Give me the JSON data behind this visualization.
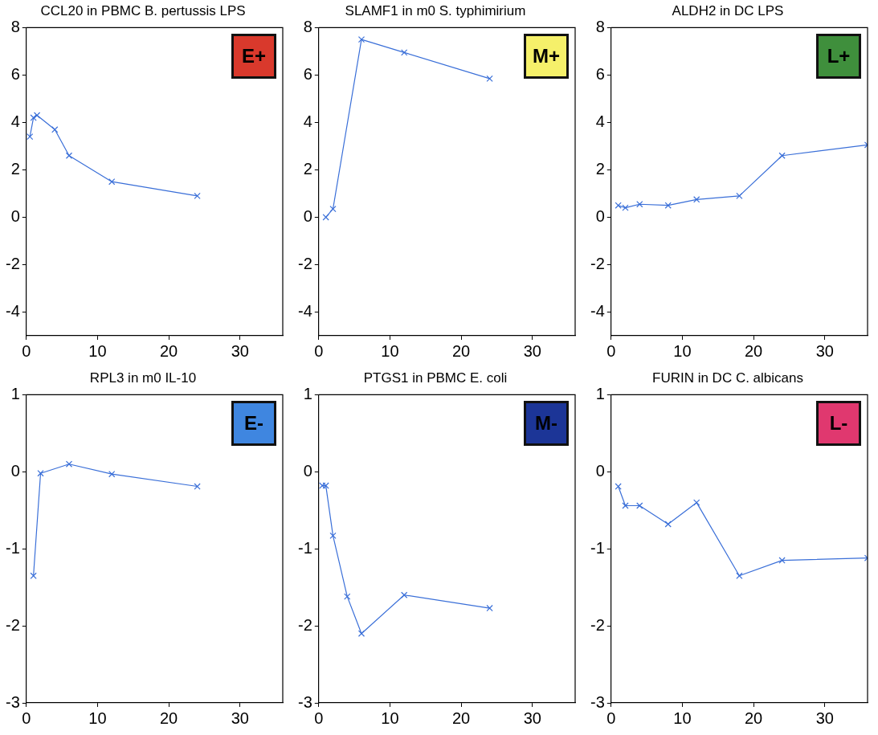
{
  "chart_data": [
    {
      "type": "line",
      "title": "CCL20 in PBMC B. pertussis LPS",
      "x": [
        0.5,
        1,
        1.5,
        4,
        6,
        12,
        24
      ],
      "series": [
        {
          "color": "#3a6fd8",
          "values": [
            3.4,
            4.2,
            4.3,
            3.7,
            2.6,
            1.5,
            0.9
          ]
        }
      ],
      "xlim": [
        0,
        36
      ],
      "xticks": [
        0,
        10,
        20,
        30
      ],
      "ylim": [
        -5,
        8
      ],
      "yticks": [
        -4,
        -2,
        0,
        2,
        4,
        6,
        8
      ],
      "grid": false,
      "legend": false,
      "marker": "cross",
      "annotations": [
        "E+"
      ]
    },
    {
      "type": "line",
      "title": "SLAMF1 in m0 S. typhimirium",
      "x": [
        1,
        2,
        6,
        12,
        24
      ],
      "series": [
        {
          "color": "#3a6fd8",
          "values": [
            0,
            0.35,
            7.5,
            6.95,
            5.85
          ]
        }
      ],
      "xlim": [
        0,
        36
      ],
      "xticks": [
        0,
        10,
        20,
        30
      ],
      "ylim": [
        -5,
        8
      ],
      "yticks": [
        -4,
        -2,
        0,
        2,
        4,
        6,
        8
      ],
      "grid": false,
      "legend": false,
      "marker": "cross",
      "annotations": [
        "M+"
      ]
    },
    {
      "type": "line",
      "title": "ALDH2 in DC LPS",
      "x": [
        1,
        2,
        4,
        8,
        12,
        18,
        24,
        36
      ],
      "series": [
        {
          "color": "#3a6fd8",
          "values": [
            0.5,
            0.4,
            0.55,
            0.5,
            0.75,
            0.9,
            2.6,
            3.05
          ]
        }
      ],
      "xlim": [
        0,
        36
      ],
      "xticks": [
        0,
        10,
        20,
        30
      ],
      "ylim": [
        -5,
        8
      ],
      "yticks": [
        -4,
        -2,
        0,
        2,
        4,
        6,
        8
      ],
      "grid": false,
      "legend": false,
      "marker": "cross",
      "annotations": [
        "L+"
      ]
    },
    {
      "type": "line",
      "title": "RPL3 in m0 IL-10",
      "x": [
        1,
        2,
        6,
        12,
        24
      ],
      "series": [
        {
          "color": "#3a6fd8",
          "values": [
            -1.35,
            -0.02,
            0.1,
            -0.03,
            -0.19
          ]
        }
      ],
      "xlim": [
        0,
        36
      ],
      "xticks": [
        0,
        10,
        20,
        30
      ],
      "ylim": [
        -3,
        1
      ],
      "yticks": [
        -3,
        -2,
        -1,
        0,
        1
      ],
      "grid": false,
      "legend": false,
      "marker": "cross",
      "annotations": [
        "E-"
      ]
    },
    {
      "type": "line",
      "title": "PTGS1 in PBMC E. coli",
      "x": [
        0.5,
        1,
        2,
        4,
        6,
        12,
        24
      ],
      "series": [
        {
          "color": "#3a6fd8",
          "values": [
            -0.18,
            -0.18,
            -0.83,
            -1.62,
            -2.1,
            -1.6,
            -1.77
          ]
        }
      ],
      "xlim": [
        0,
        36
      ],
      "xticks": [
        0,
        10,
        20,
        30
      ],
      "ylim": [
        -3,
        1
      ],
      "yticks": [
        -3,
        -2,
        -1,
        0,
        1
      ],
      "grid": false,
      "legend": false,
      "marker": "cross",
      "annotations": [
        "M-"
      ]
    },
    {
      "type": "line",
      "title": "FURIN in DC C. albicans",
      "x": [
        1,
        2,
        4,
        8,
        12,
        18,
        24,
        36
      ],
      "series": [
        {
          "color": "#3a6fd8",
          "values": [
            -0.19,
            -0.44,
            -0.44,
            -0.68,
            -0.4,
            -1.35,
            -1.15,
            -1.12
          ]
        }
      ],
      "xlim": [
        0,
        36
      ],
      "xticks": [
        0,
        10,
        20,
        30
      ],
      "ylim": [
        -3,
        1
      ],
      "yticks": [
        -3,
        -2,
        -1,
        0,
        1
      ],
      "grid": false,
      "legend": false,
      "marker": "cross",
      "annotations": [
        "L-"
      ]
    }
  ]
}
